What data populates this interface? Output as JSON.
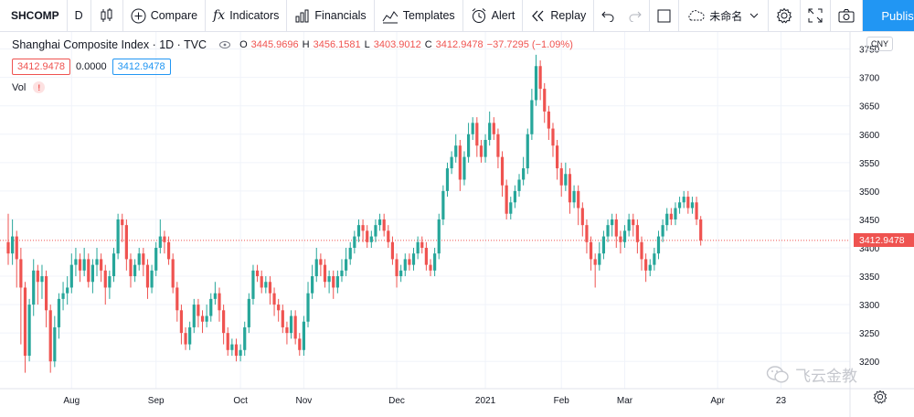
{
  "toolbar": {
    "symbol": "SHCOMP",
    "interval": "D",
    "compare": "Compare",
    "indicators": "Indicators",
    "financials": "Financials",
    "templates": "Templates",
    "alert": "Alert",
    "replay": "Replay",
    "layout_name": "未命名",
    "publish": "Publish"
  },
  "legend": {
    "title": "Shanghai Composite Index · 1D · TVC",
    "o_key": "O",
    "o_val": "3445.9696",
    "h_key": "H",
    "h_val": "3456.1581",
    "l_key": "L",
    "l_val": "3403.9012",
    "c_key": "C",
    "c_val": "3412.9478",
    "change": "−37.7295 (−1.09%)",
    "box_red": "3412.9478",
    "plain": "0.0000",
    "box_blue": "3412.9478",
    "vol": "Vol"
  },
  "currency": "CNY",
  "last_price_label": "3412.9478",
  "watermark": "飞云金教",
  "colors": {
    "up": "#26a69a",
    "down": "#ef5350",
    "accent": "#2196f3"
  },
  "chart_data": {
    "type": "candlestick",
    "y_ticks": [
      3200,
      3250,
      3300,
      3350,
      3400,
      3450,
      3500,
      3550,
      3600,
      3650,
      3700,
      3750
    ],
    "ylim": [
      3152,
      3780
    ],
    "x_labels": [
      "Aug",
      "Sep",
      "Oct",
      "Nov",
      "Dec",
      "2021",
      "Feb",
      "Mar",
      "Apr",
      "23"
    ],
    "x_label_bar_index": [
      15,
      35,
      55,
      70,
      92,
      113,
      131,
      146,
      168,
      183
    ],
    "bar_count": 190,
    "candles": [
      [
        3410,
        3390,
        3460,
        3370
      ],
      [
        3390,
        3420,
        3450,
        3370
      ],
      [
        3420,
        3380,
        3430,
        3330
      ],
      [
        3380,
        3330,
        3400,
        3230
      ],
      [
        3330,
        3210,
        3340,
        3180
      ],
      [
        3210,
        3300,
        3310,
        3200
      ],
      [
        3300,
        3360,
        3380,
        3280
      ],
      [
        3360,
        3340,
        3370,
        3300
      ],
      [
        3340,
        3350,
        3370,
        3310
      ],
      [
        3350,
        3290,
        3360,
        3260
      ],
      [
        3290,
        3200,
        3300,
        3180
      ],
      [
        3200,
        3260,
        3280,
        3190
      ],
      [
        3260,
        3310,
        3320,
        3240
      ],
      [
        3310,
        3320,
        3340,
        3290
      ],
      [
        3320,
        3330,
        3350,
        3300
      ],
      [
        3330,
        3370,
        3390,
        3320
      ],
      [
        3370,
        3380,
        3400,
        3350
      ],
      [
        3380,
        3360,
        3390,
        3340
      ],
      [
        3360,
        3380,
        3400,
        3350
      ],
      [
        3380,
        3340,
        3390,
        3330
      ],
      [
        3340,
        3370,
        3380,
        3320
      ],
      [
        3370,
        3380,
        3400,
        3350
      ],
      [
        3380,
        3360,
        3390,
        3340
      ],
      [
        3360,
        3330,
        3370,
        3300
      ],
      [
        3330,
        3350,
        3360,
        3310
      ],
      [
        3350,
        3390,
        3400,
        3340
      ],
      [
        3390,
        3450,
        3460,
        3380
      ],
      [
        3450,
        3440,
        3460,
        3410
      ],
      [
        3440,
        3380,
        3450,
        3360
      ],
      [
        3380,
        3350,
        3390,
        3330
      ],
      [
        3350,
        3370,
        3380,
        3340
      ],
      [
        3370,
        3390,
        3400,
        3360
      ],
      [
        3390,
        3370,
        3400,
        3350
      ],
      [
        3370,
        3330,
        3380,
        3310
      ],
      [
        3330,
        3360,
        3370,
        3320
      ],
      [
        3360,
        3400,
        3410,
        3350
      ],
      [
        3400,
        3420,
        3450,
        3390
      ],
      [
        3420,
        3410,
        3430,
        3390
      ],
      [
        3410,
        3380,
        3420,
        3370
      ],
      [
        3380,
        3330,
        3390,
        3320
      ],
      [
        3330,
        3290,
        3340,
        3270
      ],
      [
        3290,
        3250,
        3300,
        3230
      ],
      [
        3250,
        3230,
        3260,
        3220
      ],
      [
        3230,
        3260,
        3270,
        3220
      ],
      [
        3260,
        3300,
        3310,
        3250
      ],
      [
        3300,
        3280,
        3310,
        3260
      ],
      [
        3280,
        3270,
        3290,
        3250
      ],
      [
        3270,
        3280,
        3300,
        3260
      ],
      [
        3280,
        3310,
        3320,
        3270
      ],
      [
        3310,
        3320,
        3340,
        3300
      ],
      [
        3320,
        3290,
        3330,
        3270
      ],
      [
        3290,
        3250,
        3300,
        3230
      ],
      [
        3250,
        3220,
        3260,
        3210
      ],
      [
        3220,
        3230,
        3240,
        3210
      ],
      [
        3230,
        3210,
        3240,
        3200
      ],
      [
        3210,
        3220,
        3230,
        3200
      ],
      [
        3220,
        3260,
        3270,
        3210
      ],
      [
        3260,
        3310,
        3320,
        3250
      ],
      [
        3310,
        3360,
        3370,
        3300
      ],
      [
        3360,
        3350,
        3370,
        3340
      ],
      [
        3350,
        3330,
        3360,
        3320
      ],
      [
        3330,
        3340,
        3350,
        3320
      ],
      [
        3340,
        3320,
        3350,
        3300
      ],
      [
        3320,
        3300,
        3330,
        3280
      ],
      [
        3300,
        3290,
        3310,
        3270
      ],
      [
        3290,
        3260,
        3300,
        3250
      ],
      [
        3260,
        3250,
        3270,
        3230
      ],
      [
        3250,
        3280,
        3290,
        3240
      ],
      [
        3280,
        3240,
        3290,
        3230
      ],
      [
        3240,
        3220,
        3250,
        3210
      ],
      [
        3220,
        3270,
        3280,
        3210
      ],
      [
        3270,
        3320,
        3340,
        3260
      ],
      [
        3320,
        3350,
        3370,
        3310
      ],
      [
        3350,
        3380,
        3400,
        3340
      ],
      [
        3380,
        3370,
        3390,
        3350
      ],
      [
        3370,
        3340,
        3380,
        3330
      ],
      [
        3340,
        3350,
        3360,
        3320
      ],
      [
        3350,
        3330,
        3360,
        3310
      ],
      [
        3330,
        3350,
        3360,
        3320
      ],
      [
        3350,
        3360,
        3380,
        3340
      ],
      [
        3360,
        3380,
        3400,
        3350
      ],
      [
        3380,
        3400,
        3410,
        3370
      ],
      [
        3400,
        3420,
        3430,
        3390
      ],
      [
        3420,
        3440,
        3450,
        3410
      ],
      [
        3440,
        3430,
        3450,
        3410
      ],
      [
        3430,
        3410,
        3440,
        3400
      ],
      [
        3410,
        3420,
        3430,
        3400
      ],
      [
        3420,
        3440,
        3450,
        3410
      ],
      [
        3440,
        3450,
        3460,
        3430
      ],
      [
        3450,
        3430,
        3460,
        3420
      ],
      [
        3430,
        3410,
        3440,
        3400
      ],
      [
        3410,
        3380,
        3420,
        3370
      ],
      [
        3380,
        3350,
        3390,
        3330
      ],
      [
        3350,
        3360,
        3370,
        3340
      ],
      [
        3360,
        3380,
        3390,
        3350
      ],
      [
        3380,
        3370,
        3390,
        3360
      ],
      [
        3370,
        3390,
        3400,
        3360
      ],
      [
        3390,
        3410,
        3420,
        3380
      ],
      [
        3410,
        3400,
        3420,
        3390
      ],
      [
        3400,
        3370,
        3410,
        3360
      ],
      [
        3370,
        3360,
        3380,
        3350
      ],
      [
        3360,
        3390,
        3400,
        3350
      ],
      [
        3390,
        3450,
        3460,
        3380
      ],
      [
        3450,
        3500,
        3510,
        3440
      ],
      [
        3500,
        3540,
        3550,
        3490
      ],
      [
        3540,
        3560,
        3570,
        3530
      ],
      [
        3560,
        3580,
        3600,
        3550
      ],
      [
        3580,
        3520,
        3590,
        3500
      ],
      [
        3520,
        3560,
        3570,
        3510
      ],
      [
        3560,
        3600,
        3620,
        3550
      ],
      [
        3600,
        3620,
        3630,
        3590
      ],
      [
        3620,
        3580,
        3630,
        3560
      ],
      [
        3580,
        3560,
        3590,
        3550
      ],
      [
        3560,
        3590,
        3600,
        3550
      ],
      [
        3590,
        3620,
        3640,
        3580
      ],
      [
        3620,
        3600,
        3630,
        3590
      ],
      [
        3600,
        3560,
        3610,
        3540
      ],
      [
        3560,
        3510,
        3570,
        3490
      ],
      [
        3510,
        3460,
        3520,
        3450
      ],
      [
        3460,
        3480,
        3490,
        3450
      ],
      [
        3480,
        3500,
        3510,
        3470
      ],
      [
        3500,
        3520,
        3530,
        3490
      ],
      [
        3520,
        3540,
        3560,
        3510
      ],
      [
        3540,
        3600,
        3610,
        3530
      ],
      [
        3600,
        3660,
        3680,
        3590
      ],
      [
        3660,
        3720,
        3740,
        3650
      ],
      [
        3720,
        3680,
        3730,
        3660
      ],
      [
        3680,
        3640,
        3690,
        3620
      ],
      [
        3640,
        3610,
        3650,
        3590
      ],
      [
        3610,
        3580,
        3620,
        3560
      ],
      [
        3580,
        3540,
        3590,
        3520
      ],
      [
        3540,
        3510,
        3550,
        3490
      ],
      [
        3510,
        3530,
        3550,
        3500
      ],
      [
        3530,
        3480,
        3540,
        3460
      ],
      [
        3480,
        3500,
        3510,
        3470
      ],
      [
        3500,
        3470,
        3510,
        3440
      ],
      [
        3470,
        3440,
        3480,
        3420
      ],
      [
        3440,
        3410,
        3450,
        3390
      ],
      [
        3410,
        3380,
        3420,
        3360
      ],
      [
        3380,
        3370,
        3390,
        3330
      ],
      [
        3370,
        3390,
        3410,
        3360
      ],
      [
        3390,
        3420,
        3430,
        3380
      ],
      [
        3420,
        3440,
        3450,
        3410
      ],
      [
        3440,
        3450,
        3460,
        3420
      ],
      [
        3450,
        3420,
        3460,
        3400
      ],
      [
        3420,
        3410,
        3430,
        3390
      ],
      [
        3410,
        3430,
        3440,
        3400
      ],
      [
        3430,
        3450,
        3460,
        3420
      ],
      [
        3450,
        3440,
        3460,
        3420
      ],
      [
        3440,
        3410,
        3450,
        3390
      ],
      [
        3410,
        3380,
        3420,
        3360
      ],
      [
        3380,
        3360,
        3390,
        3340
      ],
      [
        3360,
        3370,
        3380,
        3350
      ],
      [
        3370,
        3390,
        3400,
        3360
      ],
      [
        3390,
        3420,
        3430,
        3380
      ],
      [
        3420,
        3440,
        3450,
        3410
      ],
      [
        3440,
        3460,
        3470,
        3430
      ],
      [
        3460,
        3450,
        3470,
        3440
      ],
      [
        3450,
        3470,
        3480,
        3440
      ],
      [
        3470,
        3480,
        3490,
        3460
      ],
      [
        3480,
        3490,
        3500,
        3470
      ],
      [
        3490,
        3470,
        3500,
        3460
      ],
      [
        3470,
        3480,
        3490,
        3460
      ],
      [
        3480,
        3450,
        3490,
        3440
      ],
      [
        3450,
        3413,
        3456,
        3404
      ]
    ]
  }
}
